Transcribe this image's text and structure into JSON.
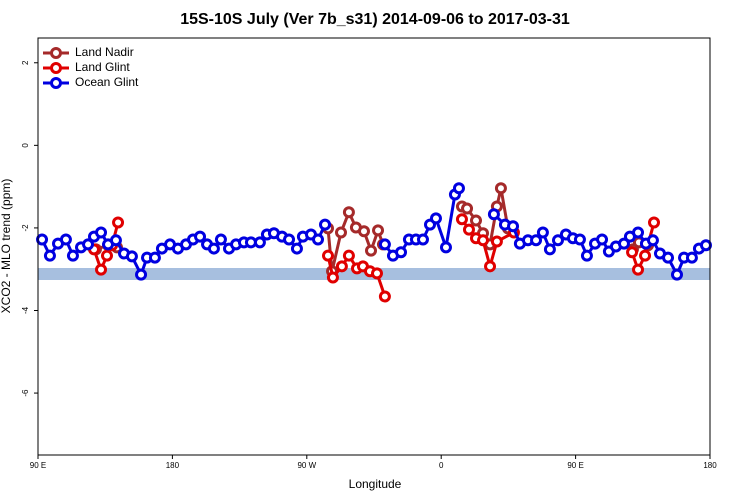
{
  "chart_data": {
    "type": "line",
    "title": "15S-10S July (Ver 7b_s31)   2014-09-06 to 2017-03-31",
    "x_label": "Longitude",
    "y_label": "XCO2 - MLO trend (ppm)",
    "xlim": [
      90,
      540
    ],
    "xticks": [
      {
        "value": 90,
        "label": "90 E"
      },
      180,
      {
        "value": 270,
        "label": "90 W"
      },
      {
        "value": 360,
        "label": "0"
      },
      {
        "value": 450,
        "label": "90 E"
      },
      {
        "value": 540,
        "label": "180"
      }
    ],
    "ylim": [
      -7.5,
      2.6
    ],
    "yticks": [
      2,
      0,
      -2,
      -4,
      -6
    ],
    "legend_position": "top-left",
    "series": [
      {
        "name": "Land Nadir",
        "color": "#a52a2a",
        "x": [
          128.8,
          136.9,
          142.9,
          null,
          284.2,
          286.9,
          292.9,
          298.2,
          302.9,
          308.3,
          313.0,
          317.7,
          321.0,
          null,
          373.9,
          377.3,
          383.3,
          388.0,
          392.7,
          397.3,
          400.0,
          404.7,
          null,
          488.4,
          492.4,
          498.5
        ],
        "values": [
          -2.52,
          -2.42,
          -2.47,
          null,
          -2.01,
          -3.05,
          -2.11,
          -1.62,
          -1.99,
          -2.08,
          -2.55,
          -2.06,
          -2.4,
          null,
          -1.48,
          -1.53,
          -1.82,
          -2.13,
          -2.4,
          -1.48,
          -1.04,
          -2.01,
          null,
          -2.52,
          -2.35,
          -2.42
        ]
      },
      {
        "name": "Land Glint",
        "color": "#e00000",
        "x": [
          127.5,
          132.2,
          136.2,
          139.6,
          143.6,
          null,
          284.2,
          287.5,
          293.5,
          298.2,
          303.6,
          307.6,
          312.3,
          317.0,
          322.3,
          null,
          373.9,
          378.6,
          383.3,
          388.0,
          392.7,
          397.3,
          408.7,
          null,
          487.8,
          491.8,
          496.5,
          502.5
        ],
        "values": [
          -2.52,
          -3.01,
          -2.67,
          -2.42,
          -1.87,
          null,
          -2.67,
          -3.2,
          -2.93,
          -2.67,
          -2.98,
          -2.93,
          -3.05,
          -3.1,
          -3.66,
          null,
          -1.79,
          -2.04,
          -2.25,
          -2.3,
          -2.93,
          -2.33,
          -2.11,
          null,
          -2.59,
          -3.01,
          -2.67,
          -1.87
        ]
      },
      {
        "name": "Ocean Glint",
        "color": "#0000e0",
        "x": [
          92.7,
          98.0,
          103.4,
          108.7,
          113.4,
          118.8,
          123.5,
          127.5,
          132.2,
          136.9,
          142.2,
          147.6,
          152.9,
          159.0,
          163.0,
          168.3,
          173.0,
          178.4,
          183.7,
          189.1,
          193.8,
          198.5,
          203.2,
          207.8,
          212.5,
          217.9,
          222.6,
          227.9,
          232.6,
          238.6,
          243.3,
          248.0,
          253.4,
          258.1,
          263.4,
          267.4,
          272.8,
          277.5,
          282.2,
          null,
          322.3,
          327.7,
          333.1,
          338.4,
          343.1,
          347.8,
          352.5,
          356.5,
          363.2,
          369.2,
          371.9,
          null,
          395.3,
          402.7,
          408.1,
          412.7,
          418.1,
          423.5,
          428.1,
          432.8,
          438.2,
          443.5,
          448.2,
          452.9,
          457.6,
          463.0,
          467.7,
          472.3,
          477.0,
          482.4,
          486.4,
          491.8,
          497.1,
          501.8,
          506.5,
          511.9,
          517.9,
          522.6,
          527.9,
          532.6,
          537.3
        ],
        "values": [
          -2.28,
          -2.67,
          -2.38,
          -2.28,
          -2.67,
          -2.47,
          -2.4,
          -2.21,
          -2.11,
          -2.4,
          -2.3,
          -2.62,
          -2.69,
          -3.13,
          -2.72,
          -2.72,
          -2.5,
          -2.4,
          -2.5,
          -2.4,
          -2.28,
          -2.21,
          -2.4,
          -2.5,
          -2.28,
          -2.5,
          -2.4,
          -2.35,
          -2.35,
          -2.35,
          -2.16,
          -2.13,
          -2.21,
          -2.28,
          -2.5,
          -2.21,
          -2.16,
          -2.28,
          -1.92,
          null,
          -2.4,
          -2.67,
          -2.59,
          -2.28,
          -2.28,
          -2.28,
          -1.92,
          -1.77,
          -2.47,
          -1.19,
          -1.04,
          null,
          -1.67,
          -1.92,
          -1.96,
          -2.38,
          -2.3,
          -2.3,
          -2.11,
          -2.52,
          -2.3,
          -2.16,
          -2.25,
          -2.28,
          -2.67,
          -2.38,
          -2.28,
          -2.57,
          -2.45,
          -2.38,
          -2.21,
          -2.11,
          -2.38,
          -2.3,
          -2.62,
          -2.72,
          -3.13,
          -2.72,
          -2.72,
          -2.5,
          -2.42
        ]
      }
    ]
  }
}
